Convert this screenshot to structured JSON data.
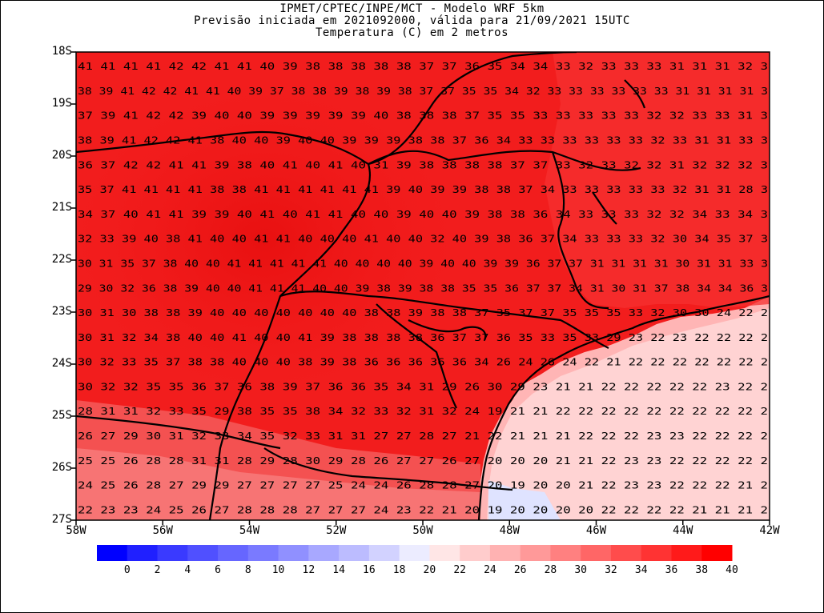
{
  "title": {
    "line1": "IPMET/CPTEC/INPE/MCT - Modelo WRF 5km",
    "line2": "Previsão iniciada em 2021092000, válida para 21/09/2021 15UTC",
    "line3": "Temperatura (C) em 2 metros"
  },
  "axes": {
    "lat_labels": [
      "18S",
      "19S",
      "20S",
      "21S",
      "22S",
      "23S",
      "24S",
      "25S",
      "26S",
      "27S"
    ],
    "lon_labels": [
      "58W",
      "56W",
      "54W",
      "52W",
      "50W",
      "48W",
      "46W",
      "44W",
      "42W"
    ]
  },
  "colorbar": {
    "ticks": [
      "0",
      "2",
      "4",
      "6",
      "8",
      "10",
      "12",
      "14",
      "16",
      "18",
      "20",
      "22",
      "24",
      "26",
      "28",
      "30",
      "32",
      "34",
      "36",
      "38",
      "40"
    ],
    "colors": [
      "#0000ff",
      "#2020ff",
      "#3a3aff",
      "#5050ff",
      "#6666ff",
      "#7a7aff",
      "#9090ff",
      "#a8a8ff",
      "#bcbcff",
      "#d2d2ff",
      "#ececff",
      "#ffe6e6",
      "#ffcccc",
      "#ffb2b2",
      "#ff9999",
      "#ff8080",
      "#ff6666",
      "#ff4c4c",
      "#ff3333",
      "#ff1a1a",
      "#ff0000"
    ]
  },
  "field": {
    "rows": [
      "41 41 41 41 42 42 41 41 40 39 38 38 38 38 38 37 37 36 35 34 34 33 32 33 33 33 31 31 31 32 3",
      "38 39 41 42 42 41 41 40 39 37 38 38 39 38 39 38 37 37 35 35 34 32 33 33 33 33 33 33 31 31 31 31 3",
      "37 39 41 42 42 39 40 40 39 39 39 39 39 40 38 38 38 37 35 35 33 33 33 33 33 32 32 33 33 31 3",
      "38 39 41 42 42 41 38 40 40 39 40 40 39 39 39 38 38 37 36 34 33 33 33 33 33 33 32 33 31 31 33 3",
      "36 37 42 42 41 41 39 38 40 41 40 41 40 31 39 38 38 38 38 37 37 33 32 33 32 32 31 32 32 32 3",
      "35 37 41 41 41 41 38 38 41 41 41 41 41 41 39 40 39 39 38 38 37 34 33 33 33 33 33 32 31 31 28 3",
      "34 37 40 41 41 39 39 40 41 40 41 41 40 40 39 40 40 39 38 38 36 34 33 33 33 32 32 34 33 34 3",
      "32 33 39 40 38 41 40 40 41 41 40 40 40 41 40 40 32 40 39 38 36 37 34 33 33 33 32 30 34 35 37 3",
      "30 31 35 37 38 40 40 41 41 41 41 41 40 40 40 40 39 40 40 39 39 36 37 37 31 31 31 31 30 31 31 33 3",
      "29 30 32 36 38 39 40 40 41 41 41 40 40 39 38 39 38 38 35 35 36 37 37 34 31 30 31 37 38 34 34 36 3",
      "30 31 30 38 38 39 40 40 40 40 40 40 40 38 38 39 38 38 37 35 37 37 35 35 35 33 32 30 30 24 22 2",
      "30 31 32 34 38 40 40 41 40 40 41 39 38 38 38 38 36 37 37 36 35 33 35 33 29 23 22 23 22 22 22 2",
      "30 32 33 35 37 38 38 40 40 40 38 39 38 36 36 36 36 36 34 26 24 26 24 22 21 22 22 22 22 22 22 2",
      "30 32 32 35 35 36 37 36 38 39 37 36 36 35 34 31 29 26 30 29 23 21 21 22 22 22 22 22 23 22 2",
      "28 31 31 32 33 35 29 38 35 35 38 34 32 33 32 31 32 24 19 21 21 22 22 22 22 22 22 22 22 22 2",
      "26 27 29 30 31 32 33 34 35 32 33 31 31 27 27 28 27 21 22 21 21 21 22 22 22 23 23 22 22 22 2",
      "25 25 26 28 28 31 31 28 29 28 30 29 28 26 27 27 26 27 20 20 20 21 21 22 23 23 22 22 22 22 2",
      "24 25 26 28 27 29 29 27 27 27 27 25 24 24 26 28 28 27 20 19 20 20 21 22 23 23 22 22 22 21 2",
      "22 23 23 24 25 26 27 28 28 28 27 27 27 24 23 22 21 20 19 20 20 20 20 22 22 22 22 21 21 21 2"
    ]
  }
}
